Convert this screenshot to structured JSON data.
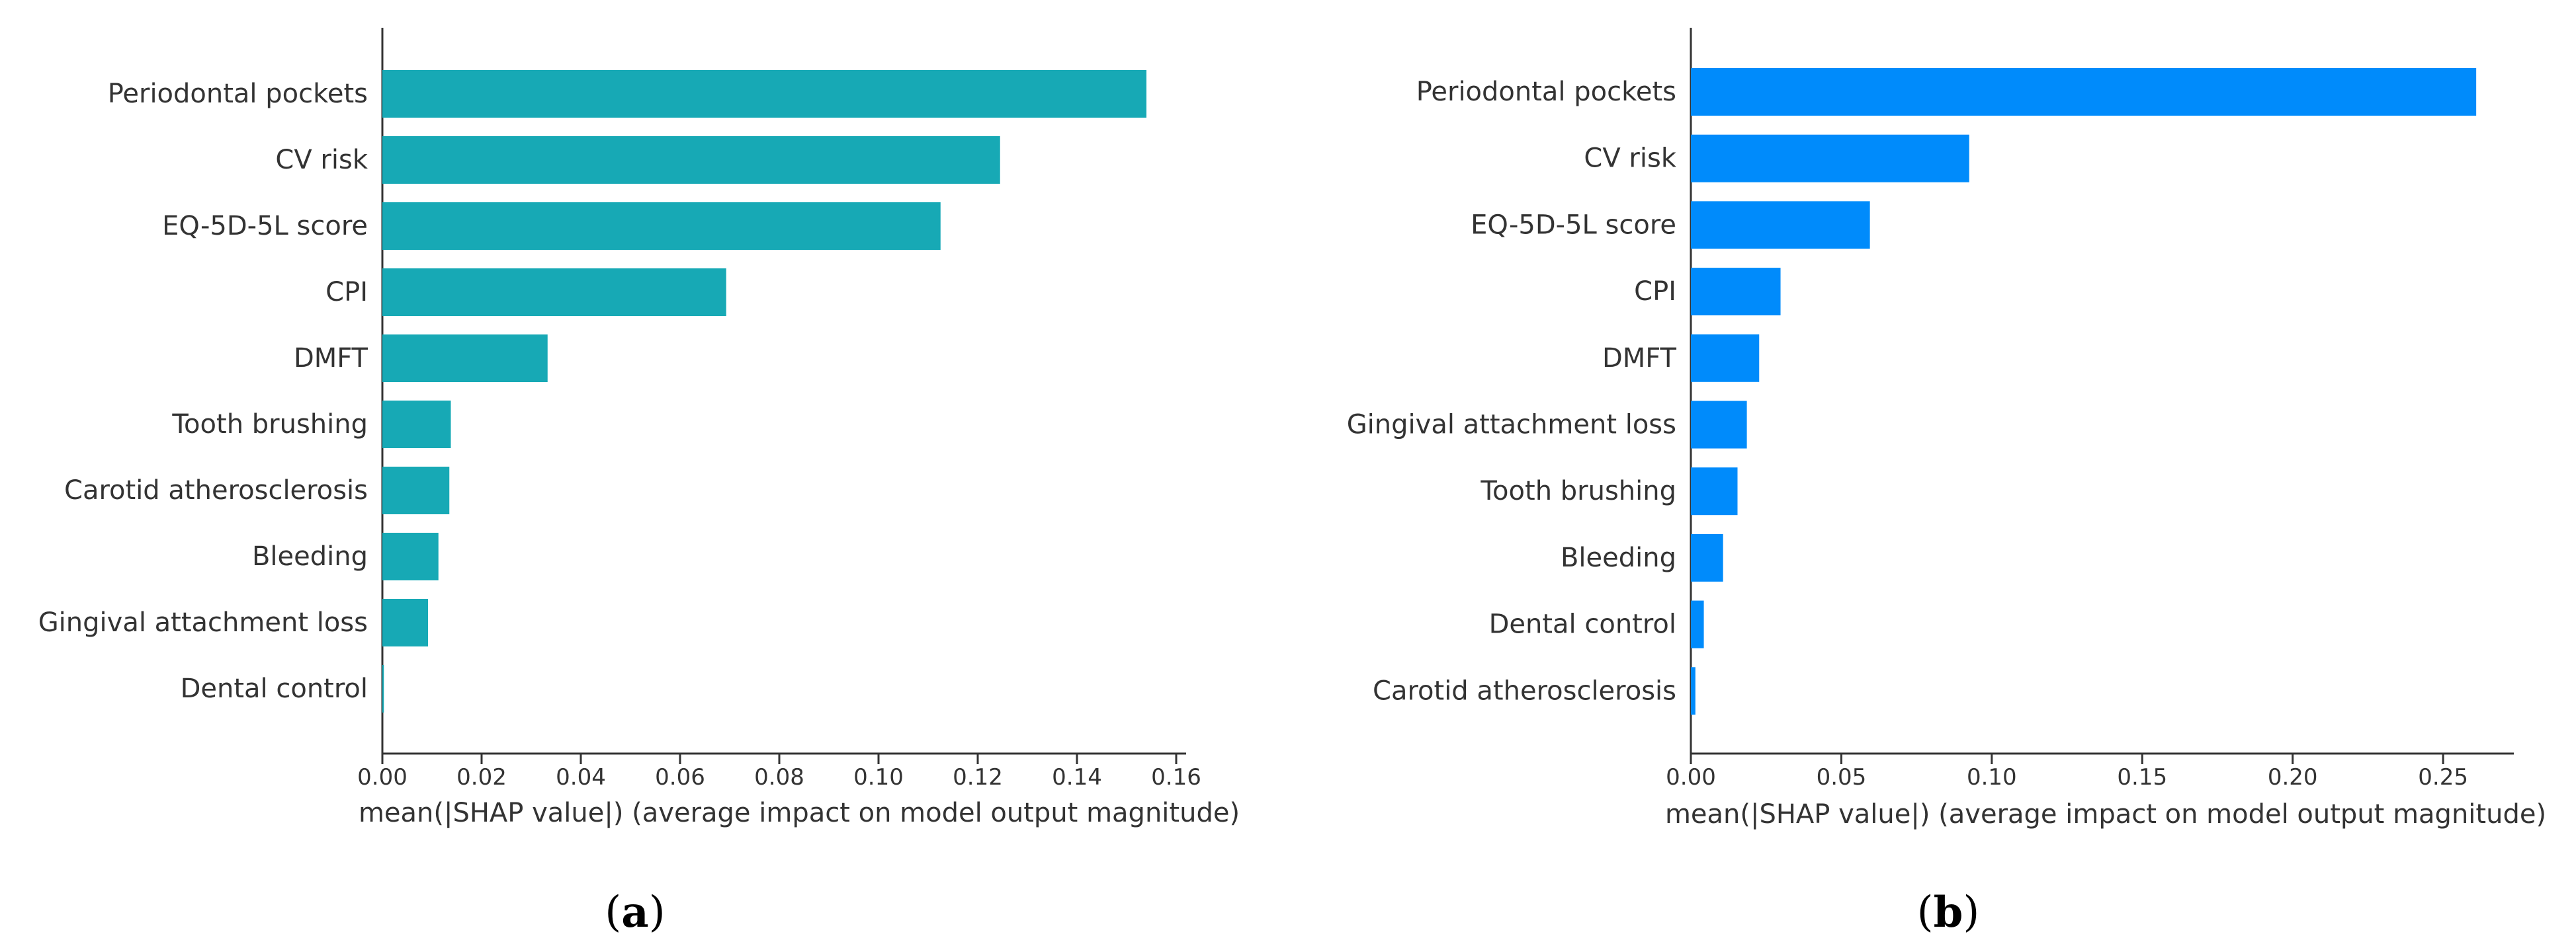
{
  "chart_data": [
    {
      "type": "bar",
      "orientation": "horizontal",
      "panel_label": "(a)",
      "panel_letter": "a",
      "color": "#17A9B5",
      "categories": [
        "Periodontal pockets",
        "CV risk",
        "EQ-5D-5L score",
        "CPI",
        "DMFT",
        "Tooth brushing",
        "Carotid atherosclerosis",
        "Bleeding",
        "Gingival attachment loss",
        "Dental control"
      ],
      "values": [
        0.154,
        0.1245,
        0.1125,
        0.0693,
        0.0333,
        0.0138,
        0.0135,
        0.0113,
        0.0092,
        0.0003
      ],
      "xlabel": "mean(|SHAP value|) (average impact on model output magnitude)",
      "xlim": [
        0,
        0.162
      ],
      "xticks": [
        0.0,
        0.02,
        0.04,
        0.06,
        0.08,
        0.1,
        0.12,
        0.14,
        0.16
      ],
      "xtick_labels": [
        "0.00",
        "0.02",
        "0.04",
        "0.06",
        "0.08",
        "0.10",
        "0.12",
        "0.14",
        "0.16"
      ]
    },
    {
      "type": "bar",
      "orientation": "horizontal",
      "panel_label": "(b)",
      "panel_letter": "b",
      "color": "#008BFB",
      "categories": [
        "Periodontal pockets",
        "CV risk",
        "EQ-5D-5L score",
        "CPI",
        "DMFT",
        "Gingival attachment loss",
        "Tooth brushing",
        "Bleeding",
        "Dental control",
        "Carotid atherosclerosis"
      ],
      "values": [
        0.261,
        0.0925,
        0.0595,
        0.0298,
        0.0227,
        0.0186,
        0.0155,
        0.0107,
        0.0043,
        0.0015
      ],
      "xlabel": "mean(|SHAP value|) (average impact on model output magnitude)",
      "xlim": [
        0,
        0.2735
      ],
      "xticks": [
        0.0,
        0.05,
        0.1,
        0.15,
        0.2,
        0.25
      ],
      "xtick_labels": [
        "0.00",
        "0.05",
        "0.10",
        "0.15",
        "0.20",
        "0.25"
      ]
    }
  ]
}
